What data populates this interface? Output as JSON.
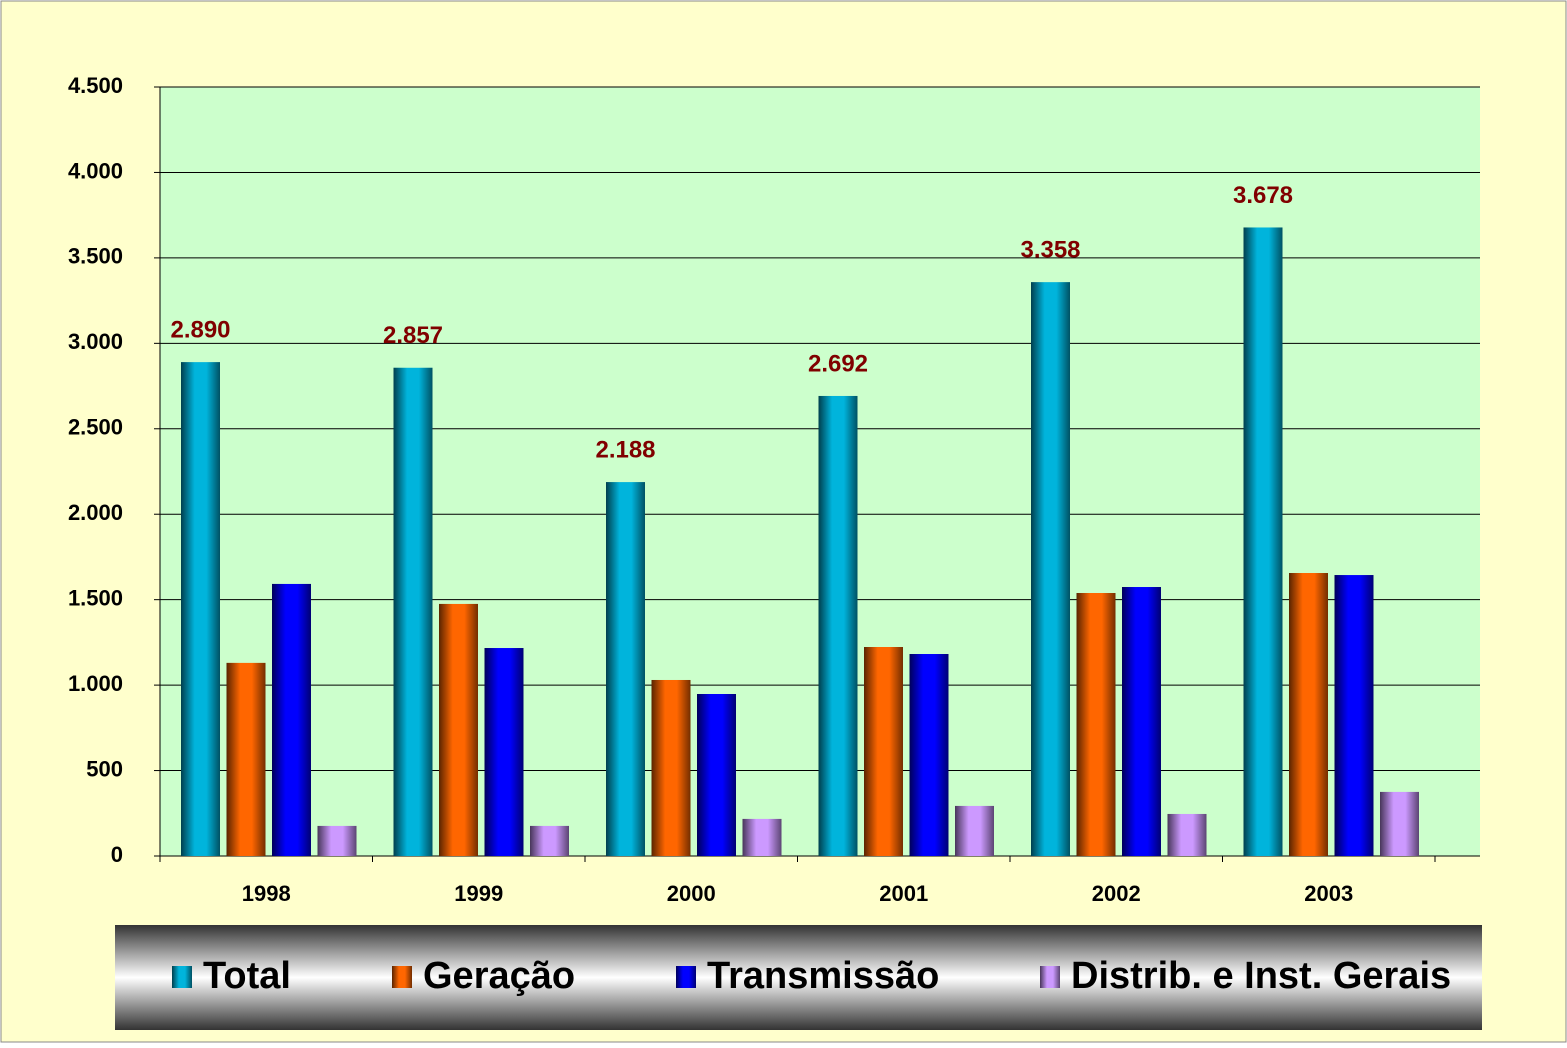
{
  "chart_data": {
    "type": "bar",
    "categories": [
      "1998",
      "1999",
      "2000",
      "2001",
      "2002",
      "2003"
    ],
    "series": [
      {
        "name": "Total",
        "color": "#00b4dc",
        "values": [
          2890,
          2857,
          2188,
          2692,
          3358,
          3678
        ],
        "value_labels": [
          "2.890",
          "2.857",
          "2.188",
          "2.692",
          "3.358",
          "3.678"
        ]
      },
      {
        "name": "Geração",
        "color": "#ff6600",
        "values": [
          1130,
          1475,
          1030,
          1223,
          1539,
          1656
        ]
      },
      {
        "name": "Transmissão",
        "color": "#0000ff",
        "values": [
          1592,
          1217,
          948,
          1182,
          1574,
          1644
        ]
      },
      {
        "name": "Distrib. e Inst. Gerais",
        "color": "#cc99ff",
        "values": [
          176,
          176,
          217,
          293,
          246,
          375
        ]
      }
    ],
    "ylim": [
      0,
      4500
    ],
    "yticks": [
      0,
      500,
      {
        "value": 1000,
        "label": "1.000"
      },
      {
        "value": 1500,
        "label": "1.500"
      },
      {
        "value": 2000,
        "label": "2.000"
      },
      {
        "value": 2500,
        "label": "2.500"
      },
      {
        "value": 3000,
        "label": "3.000"
      },
      {
        "value": 3500,
        "label": "3.500"
      },
      {
        "value": 4000,
        "label": "4.000"
      },
      {
        "value": 4500,
        "label": "4.500"
      }
    ],
    "grid": true,
    "legend": "bottom"
  }
}
